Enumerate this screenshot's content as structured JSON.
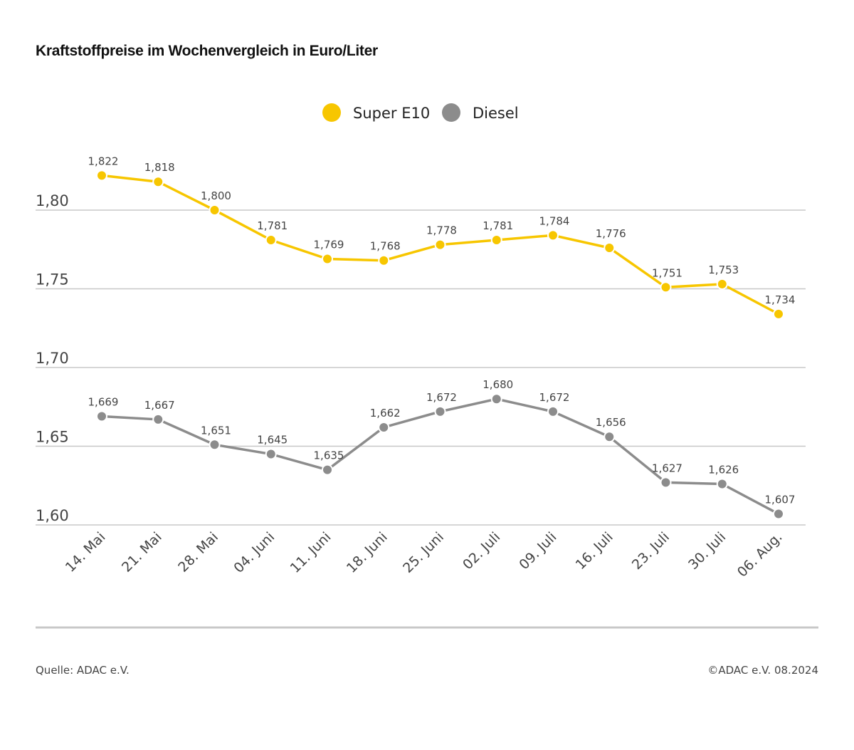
{
  "chart_data": {
    "type": "line",
    "title": "Kraftstoffpreise im Wochenvergleich in Euro/Liter",
    "categories": [
      "14. Mai",
      "21. Mai",
      "28. Mai",
      "04. Juni",
      "11. Juni",
      "18. Juni",
      "25. Juni",
      "02. Juli",
      "09. Juli",
      "16. Juli",
      "23. Juli",
      "30. Juli",
      "06. Aug."
    ],
    "series": [
      {
        "name": "Super E10",
        "color": "#f7c600",
        "values": [
          1.822,
          1.818,
          1.8,
          1.781,
          1.769,
          1.768,
          1.778,
          1.781,
          1.784,
          1.776,
          1.751,
          1.753,
          1.734
        ],
        "labels": [
          "1,822",
          "1,818",
          "1,800",
          "1,781",
          "1,769",
          "1,768",
          "1,778",
          "1,781",
          "1,784",
          "1,776",
          "1,751",
          "1,753",
          "1,734"
        ]
      },
      {
        "name": "Diesel",
        "color": "#8c8c8c",
        "values": [
          1.669,
          1.667,
          1.651,
          1.645,
          1.635,
          1.662,
          1.672,
          1.68,
          1.672,
          1.656,
          1.627,
          1.626,
          1.607
        ],
        "labels": [
          "1,669",
          "1,667",
          "1,651",
          "1,645",
          "1,635",
          "1,662",
          "1,672",
          "1,680",
          "1,672",
          "1,656",
          "1,627",
          "1,626",
          "1,607"
        ]
      }
    ],
    "yticks": [
      1.6,
      1.65,
      1.7,
      1.75,
      1.8
    ],
    "ytick_labels": [
      "1,60",
      "1,65",
      "1,70",
      "1,75",
      "1,80"
    ],
    "ylim": [
      1.6,
      1.8
    ],
    "grid": true,
    "legend": "top-center"
  },
  "footer": {
    "source": "Quelle: ADAC e.V.",
    "copyright": "©ADAC e.V. 08.2024"
  }
}
